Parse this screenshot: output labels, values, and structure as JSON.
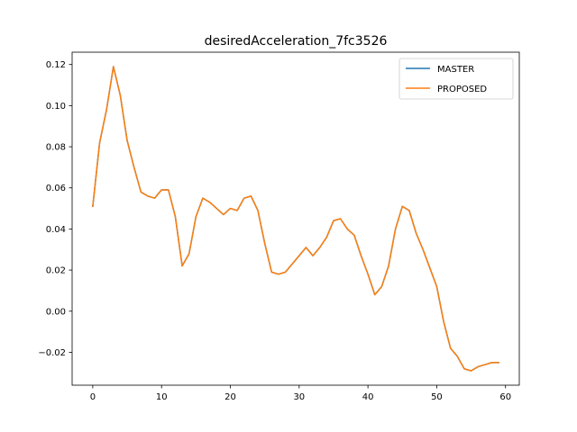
{
  "chart_data": {
    "type": "line",
    "title": "desiredAcceleration_7fc3526",
    "xlabel": "",
    "ylabel": "",
    "xlim": [
      -3,
      62
    ],
    "ylim": [
      -0.036,
      0.126
    ],
    "xticks": [
      0,
      10,
      20,
      30,
      40,
      50,
      60
    ],
    "yticks": [
      -0.02,
      0.0,
      0.02,
      0.04,
      0.06,
      0.08,
      0.1,
      0.12
    ],
    "ytick_labels": [
      "−0.02",
      "0.00",
      "0.02",
      "0.04",
      "0.06",
      "0.08",
      "0.10",
      "0.12"
    ],
    "grid": false,
    "legend_position": "top-right",
    "x": [
      0,
      1,
      2,
      3,
      4,
      5,
      6,
      7,
      8,
      9,
      10,
      11,
      12,
      13,
      14,
      15,
      16,
      17,
      18,
      19,
      20,
      21,
      22,
      23,
      24,
      25,
      26,
      27,
      28,
      29,
      30,
      31,
      32,
      33,
      34,
      35,
      36,
      37,
      38,
      39,
      40,
      41,
      42,
      43,
      44,
      45,
      46,
      47,
      48,
      49,
      50,
      51,
      52,
      53,
      54,
      55,
      56,
      57,
      58,
      59
    ],
    "series": [
      {
        "name": "MASTER",
        "color": "#1f77b4",
        "values": [
          0.051,
          0.082,
          0.098,
          0.119,
          0.105,
          0.083,
          0.07,
          0.058,
          0.056,
          0.055,
          0.059,
          0.059,
          0.046,
          0.022,
          0.028,
          0.046,
          0.055,
          0.053,
          0.05,
          0.047,
          0.05,
          0.049,
          0.055,
          0.056,
          0.049,
          0.033,
          0.019,
          0.018,
          0.019,
          0.023,
          0.027,
          0.031,
          0.027,
          0.031,
          0.036,
          0.044,
          0.045,
          0.04,
          0.037,
          0.027,
          0.018,
          0.008,
          0.012,
          0.022,
          0.04,
          0.051,
          0.049,
          0.038,
          0.03,
          0.021,
          0.012,
          -0.005,
          -0.018,
          -0.022,
          -0.028,
          -0.029,
          -0.027,
          -0.026,
          -0.025,
          -0.025
        ]
      },
      {
        "name": "PROPOSED",
        "color": "#ff7f0e",
        "values": [
          0.051,
          0.082,
          0.098,
          0.119,
          0.105,
          0.083,
          0.07,
          0.058,
          0.056,
          0.055,
          0.059,
          0.059,
          0.046,
          0.022,
          0.028,
          0.046,
          0.055,
          0.053,
          0.05,
          0.047,
          0.05,
          0.049,
          0.055,
          0.056,
          0.049,
          0.033,
          0.019,
          0.018,
          0.019,
          0.023,
          0.027,
          0.031,
          0.027,
          0.031,
          0.036,
          0.044,
          0.045,
          0.04,
          0.037,
          0.027,
          0.018,
          0.008,
          0.012,
          0.022,
          0.04,
          0.051,
          0.049,
          0.038,
          0.03,
          0.021,
          0.012,
          -0.005,
          -0.018,
          -0.022,
          -0.028,
          -0.029,
          -0.027,
          -0.026,
          -0.025,
          -0.025
        ]
      }
    ]
  }
}
